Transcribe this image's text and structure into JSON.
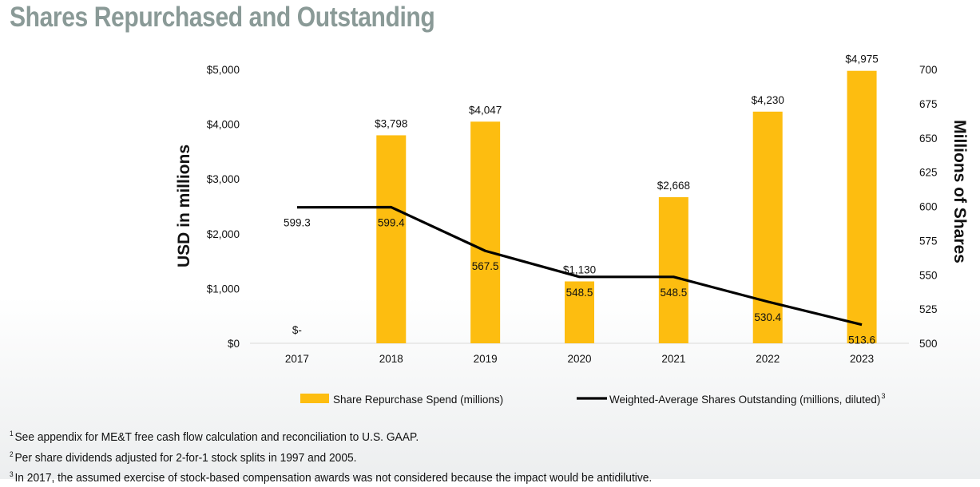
{
  "title": "Shares Repurchased and Outstanding",
  "chart_data": {
    "type": "bar",
    "categories": [
      "2017",
      "2018",
      "2019",
      "2020",
      "2021",
      "2022",
      "2023"
    ],
    "series": [
      {
        "name": "Share Repurchase Spend (millions)",
        "type": "bar",
        "axis": "left",
        "color": "#fdbd10",
        "values": [
          0,
          3798,
          4047,
          1130,
          2668,
          4230,
          4975
        ],
        "labels": [
          "$-",
          "$3,798",
          "$4,047",
          "$1,130",
          "$2,668",
          "$4,230",
          "$4,975"
        ]
      },
      {
        "name": "Weighted-Average Shares Outstanding (millions, diluted)",
        "name_sup": "3",
        "type": "line",
        "axis": "right",
        "color": "#000000",
        "values": [
          599.3,
          599.4,
          567.5,
          548.5,
          548.5,
          530.4,
          513.6
        ],
        "labels": [
          "599.3",
          "599.4",
          "567.5",
          "548.5",
          "548.5",
          "530.4",
          "513.6"
        ]
      }
    ],
    "y_left": {
      "label": "USD in millions",
      "range": [
        0,
        5000
      ],
      "ticks": [
        0,
        1000,
        2000,
        3000,
        4000,
        5000
      ],
      "tick_labels": [
        "$0",
        "$1,000",
        "$2,000",
        "$3,000",
        "$4,000",
        "$5,000"
      ]
    },
    "y_right": {
      "label": "Millions of Shares",
      "range": [
        500,
        700
      ],
      "ticks": [
        500,
        525,
        550,
        575,
        600,
        625,
        650,
        675,
        700
      ],
      "tick_labels": [
        "500",
        "525",
        "550",
        "575",
        "600",
        "625",
        "650",
        "675",
        "700"
      ]
    },
    "grid": false,
    "legend": "bottom"
  },
  "footnotes": [
    {
      "sup": "1",
      "text": "See appendix for ME&T free cash flow calculation and reconciliation to U.S. GAAP."
    },
    {
      "sup": "2",
      "text": "Per share dividends adjusted for 2-for-1 stock splits in 1997 and 2005."
    },
    {
      "sup": "3",
      "text": "In 2017, the assumed exercise of stock-based compensation awards was not considered because the impact would be antidilutive."
    }
  ]
}
